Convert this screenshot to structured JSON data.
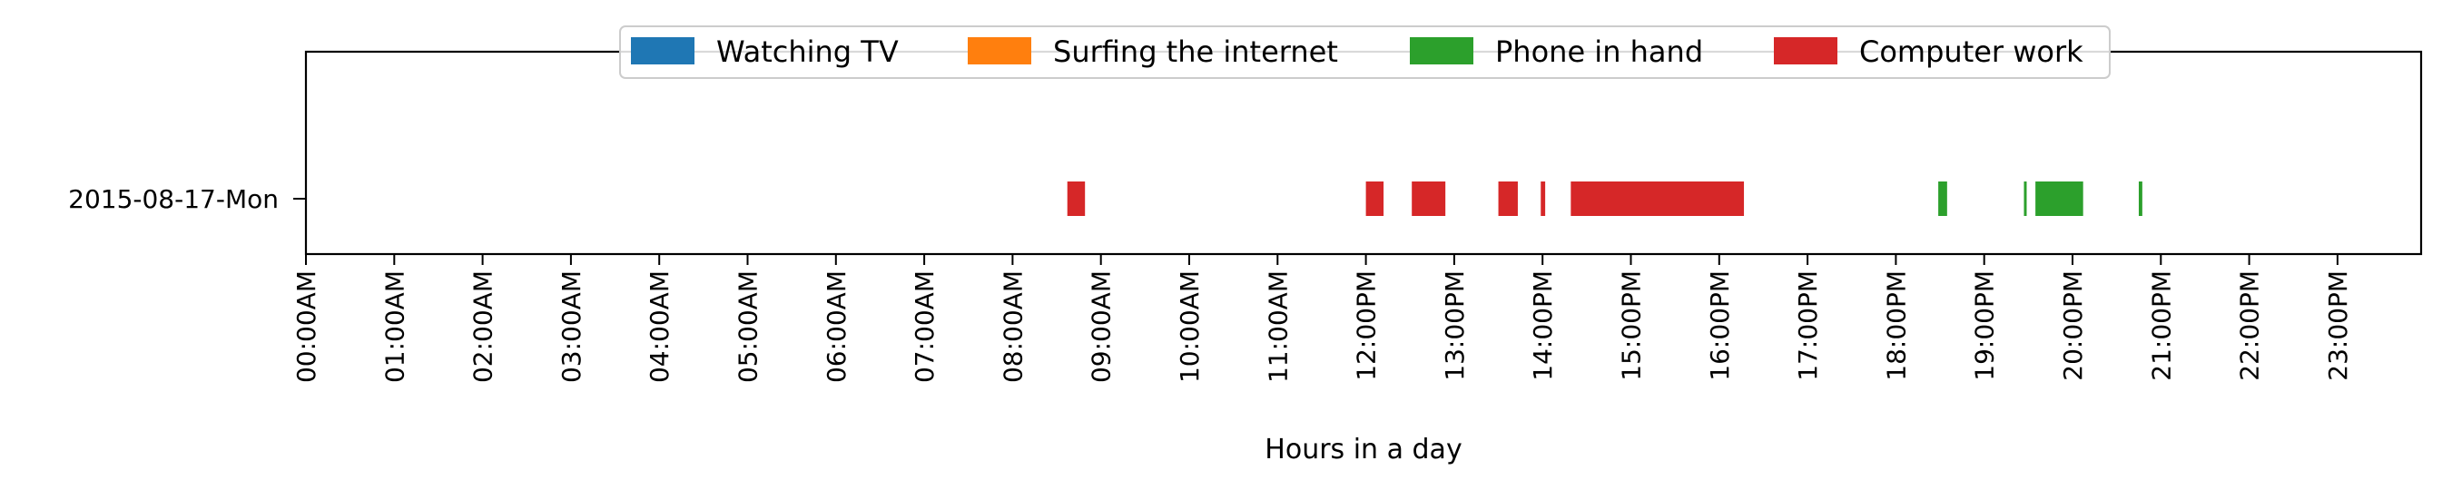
{
  "chart_data": {
    "type": "broken-bar-timeline",
    "xlabel": "Hours in a day",
    "ylabel": "",
    "x_range_hours": [
      0,
      24
    ],
    "x_ticks": [
      "00:00AM",
      "01:00AM",
      "02:00AM",
      "03:00AM",
      "04:00AM",
      "05:00AM",
      "06:00AM",
      "07:00AM",
      "08:00AM",
      "09:00AM",
      "10:00AM",
      "11:00AM",
      "12:00PM",
      "13:00PM",
      "14:00PM",
      "15:00PM",
      "16:00PM",
      "17:00PM",
      "18:00PM",
      "19:00PM",
      "20:00PM",
      "21:00PM",
      "22:00PM",
      "23:00PM"
    ],
    "categories": [
      "2015-08-17-Mon"
    ],
    "legend_position": "top-center",
    "grid": false,
    "series": [
      {
        "name": "Watching TV",
        "color": "#1f77b4",
        "intervals": []
      },
      {
        "name": "Surfing the internet",
        "color": "#ff7f0e",
        "intervals": []
      },
      {
        "name": "Phone in hand",
        "color": "#2ca02c",
        "intervals": [
          [
            18.48,
            18.58
          ],
          [
            19.45,
            19.48
          ],
          [
            19.58,
            20.12
          ],
          [
            20.75,
            20.79
          ]
        ]
      },
      {
        "name": "Computer work",
        "color": "#d62728",
        "intervals": [
          [
            8.62,
            8.82
          ],
          [
            12.0,
            12.2
          ],
          [
            12.52,
            12.9
          ],
          [
            13.5,
            13.72
          ],
          [
            13.98,
            14.03
          ],
          [
            14.32,
            16.28
          ]
        ]
      }
    ]
  }
}
